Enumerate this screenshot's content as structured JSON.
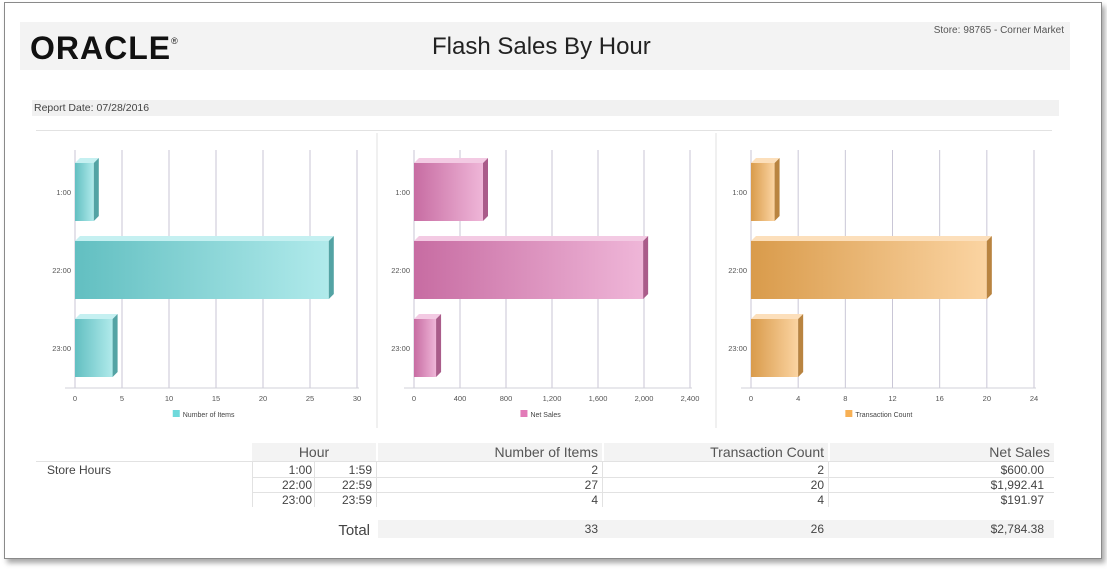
{
  "header": {
    "logo": "ORACLE",
    "title": "Flash Sales By Hour",
    "store_label": "Store:",
    "store_value": "98765 - Corner Market"
  },
  "report_date": {
    "label": "Report Date:",
    "value": "07/28/2016"
  },
  "colors": {
    "items": "#6fd9db",
    "sales": "#e27bb8",
    "transactions": "#f7b055"
  },
  "chart_data": [
    {
      "type": "bar",
      "orientation": "horizontal",
      "categories": [
        "1:00",
        "22:00",
        "23:00"
      ],
      "series": [
        {
          "name": "Number of Items",
          "values": [
            2,
            27,
            4
          ]
        }
      ],
      "xlim": [
        0,
        30
      ],
      "ticks": [
        "0",
        "5",
        "10",
        "15",
        "20",
        "25",
        "30"
      ],
      "legend": "bottom",
      "grid": true
    },
    {
      "type": "bar",
      "orientation": "horizontal",
      "categories": [
        "1:00",
        "22:00",
        "23:00"
      ],
      "series": [
        {
          "name": "Net Sales",
          "values": [
            600.0,
            1992.41,
            191.97
          ]
        }
      ],
      "xlim": [
        0,
        2400
      ],
      "ticks": [
        "0",
        "400",
        "800",
        "1,200",
        "1,600",
        "2,000",
        "2,400"
      ],
      "legend": "bottom",
      "grid": true
    },
    {
      "type": "bar",
      "orientation": "horizontal",
      "categories": [
        "1:00",
        "22:00",
        "23:00"
      ],
      "series": [
        {
          "name": "Transaction Count",
          "values": [
            2,
            20,
            4
          ]
        }
      ],
      "xlim": [
        0,
        24
      ],
      "ticks": [
        "0",
        "4",
        "8",
        "12",
        "16",
        "20",
        "24"
      ],
      "legend": "bottom",
      "grid": true
    }
  ],
  "table": {
    "headers": {
      "hour": "Hour",
      "items": "Number of Items",
      "transactions": "Transaction Count",
      "net_sales": "Net Sales"
    },
    "group_label": "Store Hours",
    "rows": [
      {
        "start": "1:00",
        "end": "1:59",
        "items": "2",
        "transactions": "2",
        "net_sales": "$600.00"
      },
      {
        "start": "22:00",
        "end": "22:59",
        "items": "27",
        "transactions": "20",
        "net_sales": "$1,992.41"
      },
      {
        "start": "23:00",
        "end": "23:59",
        "items": "4",
        "transactions": "4",
        "net_sales": "$191.97"
      }
    ],
    "total": {
      "label": "Total",
      "items": "33",
      "transactions": "26",
      "net_sales": "$2,784.38"
    }
  }
}
